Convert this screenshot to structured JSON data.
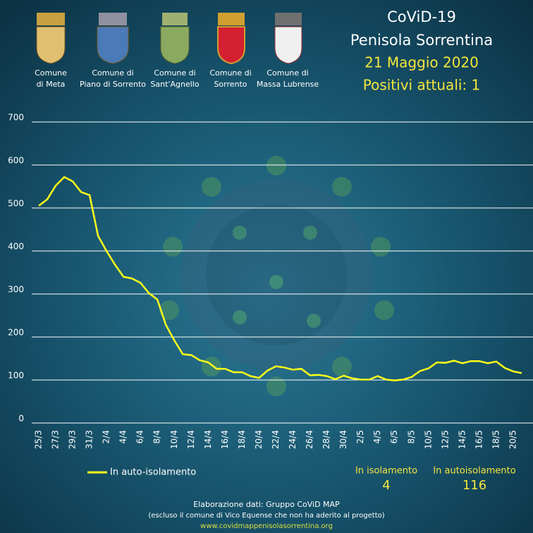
{
  "header": {
    "comuni": [
      [
        "Comune",
        "di Meta"
      ],
      [
        "Comune di",
        "Piano di Sorrento"
      ],
      [
        "Comune di",
        "Sant'Agnello"
      ],
      [
        "Comune di",
        "Sorrento"
      ],
      [
        "Comune di",
        "Massa Lubrense"
      ]
    ],
    "title": "CoViD-19",
    "subtitle": "Penisola Sorrentina",
    "date": "21 Maggio 2020",
    "headline": "Positivi attuali: 1"
  },
  "chart_data": {
    "type": "line",
    "categories": [
      "25/3",
      null,
      "27/3",
      null,
      "29/3",
      null,
      "31/3",
      null,
      "2/4",
      null,
      "4/4",
      null,
      "6/4",
      null,
      "8/4",
      null,
      "10/4",
      null,
      "12/4",
      null,
      "14/4",
      null,
      "16/4",
      null,
      "18/4",
      null,
      "20/4",
      null,
      "22/4",
      null,
      "24/4",
      null,
      "26/4",
      null,
      "28/4",
      null,
      "30/4",
      null,
      "2/5",
      null,
      "4/5",
      null,
      "6/5",
      null,
      "8/5",
      null,
      "10/5",
      null,
      "12/5",
      null,
      "14/5",
      null,
      "16/5",
      null,
      "18/5",
      null,
      "20/5",
      null
    ],
    "series": [
      {
        "name": "In auto-isolamento",
        "color": "#ffff1a",
        "values": [
          505,
          520,
          552,
          572,
          562,
          537,
          530,
          435,
          400,
          368,
          340,
          336,
          326,
          302,
          287,
          228,
          192,
          160,
          158,
          146,
          141,
          126,
          126,
          118,
          118,
          109,
          105,
          122,
          132,
          129,
          124,
          126,
          111,
          112,
          109,
          102,
          110,
          104,
          101,
          101,
          109,
          101,
          99,
          101,
          107,
          121,
          127,
          141,
          140,
          145,
          139,
          144,
          144,
          139,
          143,
          128,
          120,
          116
        ]
      }
    ],
    "ylim": [
      0,
      700
    ],
    "yticks": [
      0,
      100,
      200,
      300,
      400,
      500,
      600,
      700
    ],
    "grid": true
  },
  "stats": [
    {
      "label": "In isolamento",
      "value": 4
    },
    {
      "label": "In autoisolamento",
      "value": 116
    }
  ],
  "footer": [
    "Elaborazione  dati:  Gruppo CoViD MAP",
    "(escluso il comune  di Vico  Equense che non  ha aderito al progetto)",
    "www.covidmappenisolasorrentina.org"
  ]
}
